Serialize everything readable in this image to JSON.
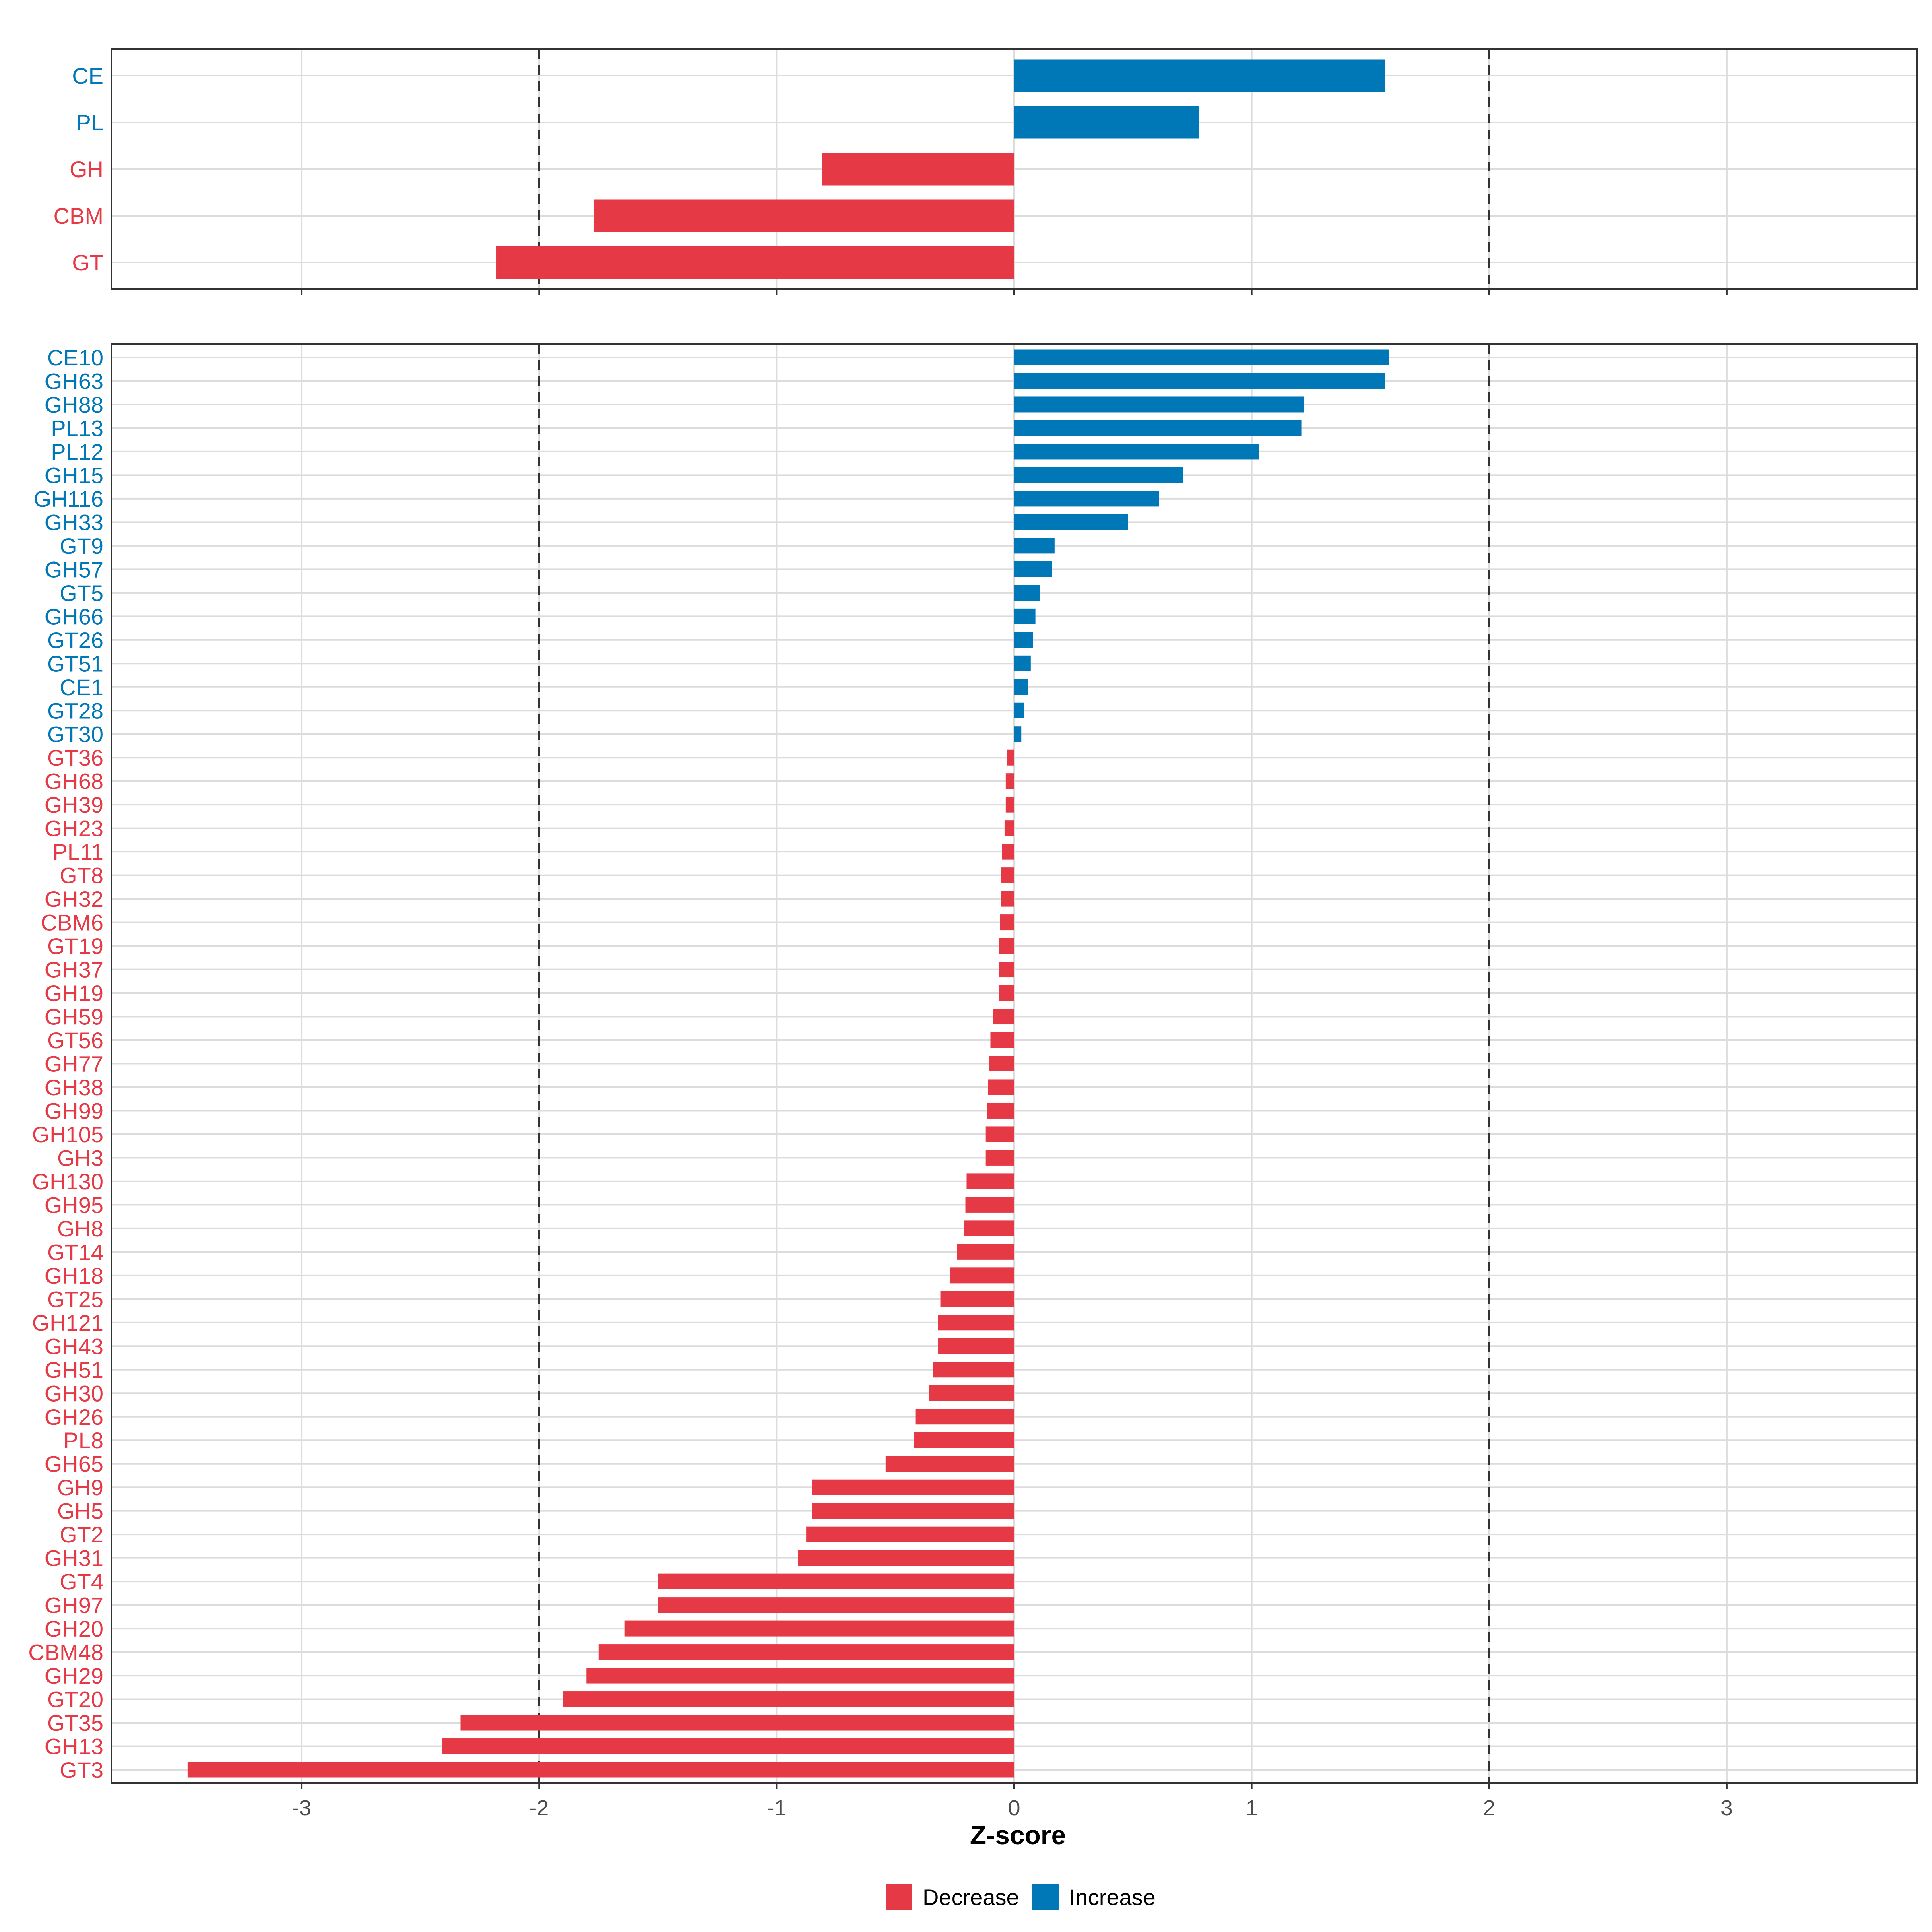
{
  "colors": {
    "decrease": "#E63946",
    "increase": "#0077B6"
  },
  "legend": {
    "decrease_label": "Decrease",
    "increase_label": "Increase"
  },
  "chart_data": [
    {
      "type": "bar",
      "orientation": "horizontal",
      "panel": "top",
      "title": "",
      "xlabel": "",
      "ylabel": "",
      "xlim": [
        -3.8,
        3.8
      ],
      "reference_lines": [
        -2,
        2
      ],
      "categories": [
        "CE",
        "PL",
        "GH",
        "CBM",
        "GT"
      ],
      "values": [
        1.56,
        0.78,
        -0.81,
        -1.77,
        -2.18
      ],
      "series_by_sign": {
        "positive": "Increase",
        "negative": "Decrease"
      }
    },
    {
      "type": "bar",
      "orientation": "horizontal",
      "panel": "bottom",
      "title": "",
      "xlabel": "Z-score",
      "ylabel": "",
      "xlim": [
        -3.8,
        3.8
      ],
      "x_ticks": [
        -3,
        -2,
        -1,
        0,
        1,
        2,
        3
      ],
      "x_tick_labels": [
        "-3",
        "-2",
        "-1",
        "0",
        "1",
        "2",
        "3"
      ],
      "reference_lines": [
        -2,
        2
      ],
      "categories": [
        "CE10",
        "GH63",
        "GH88",
        "PL13",
        "PL12",
        "GH15",
        "GH116",
        "GH33",
        "GT9",
        "GH57",
        "GT5",
        "GH66",
        "GT26",
        "GT51",
        "CE1",
        "GT28",
        "GT30",
        "GT36",
        "GH68",
        "GH39",
        "GH23",
        "PL11",
        "GT8",
        "GH32",
        "CBM6",
        "GT19",
        "GH37",
        "GH19",
        "GH59",
        "GT56",
        "GH77",
        "GH38",
        "GH99",
        "GH105",
        "GH3",
        "GH130",
        "GH95",
        "GH8",
        "GT14",
        "GH18",
        "GT25",
        "GH121",
        "GH43",
        "GH51",
        "GH30",
        "GH26",
        "PL8",
        "GH65",
        "GH9",
        "GH5",
        "GT2",
        "GH31",
        "GT4",
        "GH97",
        "GH20",
        "CBM48",
        "GH29",
        "GT20",
        "GT35",
        "GH13",
        "GT3"
      ],
      "values": [
        1.58,
        1.56,
        1.22,
        1.21,
        1.03,
        0.71,
        0.61,
        0.48,
        0.17,
        0.16,
        0.11,
        0.09,
        0.08,
        0.07,
        0.06,
        0.04,
        0.03,
        -0.03,
        -0.035,
        -0.035,
        -0.04,
        -0.05,
        -0.055,
        -0.055,
        -0.06,
        -0.065,
        -0.065,
        -0.065,
        -0.09,
        -0.1,
        -0.105,
        -0.11,
        -0.115,
        -0.12,
        -0.12,
        -0.2,
        -0.205,
        -0.21,
        -0.24,
        -0.27,
        -0.31,
        -0.32,
        -0.32,
        -0.34,
        -0.36,
        -0.415,
        -0.42,
        -0.54,
        -0.85,
        -0.85,
        -0.875,
        -0.91,
        -1.5,
        -1.5,
        -1.64,
        -1.75,
        -1.8,
        -1.9,
        -2.33,
        -2.41,
        -3.48
      ],
      "series_by_sign": {
        "positive": "Increase",
        "negative": "Decrease"
      }
    }
  ]
}
